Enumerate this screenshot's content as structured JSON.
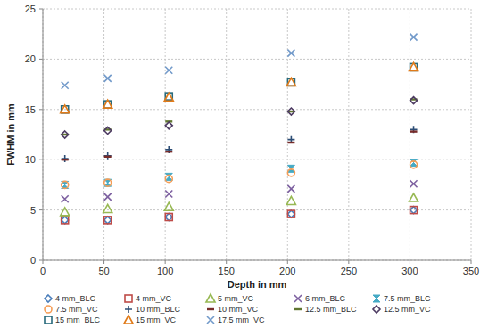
{
  "chart_data": {
    "type": "scatter",
    "x_label": "Depth in mm",
    "y_label": "FWHM in mm",
    "xlim": [
      0,
      350
    ],
    "xticks": [
      0,
      50,
      100,
      150,
      200,
      250,
      300,
      350
    ],
    "ylim": [
      0,
      25
    ],
    "yticks": [
      0,
      5,
      10,
      15,
      20,
      25
    ],
    "grid": true,
    "legend": "bottom",
    "x": [
      18,
      53,
      103,
      203,
      303
    ],
    "series": [
      {
        "name": "4 mm_BLC",
        "color": "#4a7ebb",
        "marker": "diamond",
        "values": [
          4.0,
          4.0,
          4.3,
          4.6,
          5.0
        ]
      },
      {
        "name": "4 mm_VC",
        "color": "#be4b48",
        "marker": "square",
        "values": [
          4.0,
          4.0,
          4.3,
          4.6,
          5.0
        ]
      },
      {
        "name": "5 mm_VC",
        "color": "#98b954",
        "marker": "triangle",
        "values": [
          4.8,
          5.1,
          5.3,
          5.9,
          6.2
        ]
      },
      {
        "name": "6 mm_BLC",
        "color": "#7d60a0",
        "marker": "x",
        "values": [
          6.1,
          6.3,
          6.6,
          7.1,
          7.6
        ]
      },
      {
        "name": "7.5 mm_BLC",
        "color": "#46aac5",
        "marker": "hourglass",
        "values": [
          7.5,
          7.7,
          8.3,
          9.1,
          9.7
        ]
      },
      {
        "name": "7.5 mm_VC",
        "color": "#f59d56",
        "marker": "circle",
        "values": [
          7.5,
          7.7,
          8.1,
          8.7,
          9.5
        ]
      },
      {
        "name": "10 mm_BLC",
        "color": "#2c4d75",
        "marker": "plus",
        "values": [
          10.1,
          10.4,
          11.0,
          12.0,
          13.0
        ]
      },
      {
        "name": "10 mm_VC",
        "color": "#772c2a",
        "marker": "dash",
        "values": [
          10.0,
          10.3,
          10.8,
          11.7,
          12.8
        ]
      },
      {
        "name": "12.5 mm_BLC",
        "color": "#5f7530",
        "marker": "dash",
        "values": [
          12.5,
          13.0,
          13.8,
          14.8,
          16.0
        ]
      },
      {
        "name": "12.5 mm_VC",
        "color": "#4d3b62",
        "marker": "diamond",
        "values": [
          12.5,
          12.9,
          13.4,
          14.8,
          15.9
        ]
      },
      {
        "name": "15 mm_BLC",
        "color": "#276a7c",
        "marker": "square",
        "values": [
          15.0,
          15.5,
          16.3,
          17.7,
          19.2
        ]
      },
      {
        "name": "15 mm_VC",
        "color": "#e07b1a",
        "marker": "triangle",
        "values": [
          15.0,
          15.5,
          16.2,
          17.7,
          19.2
        ]
      },
      {
        "name": "17.5 mm_VC",
        "color": "#729aca",
        "marker": "x",
        "values": [
          17.4,
          18.1,
          18.9,
          20.6,
          22.2
        ]
      }
    ]
  }
}
